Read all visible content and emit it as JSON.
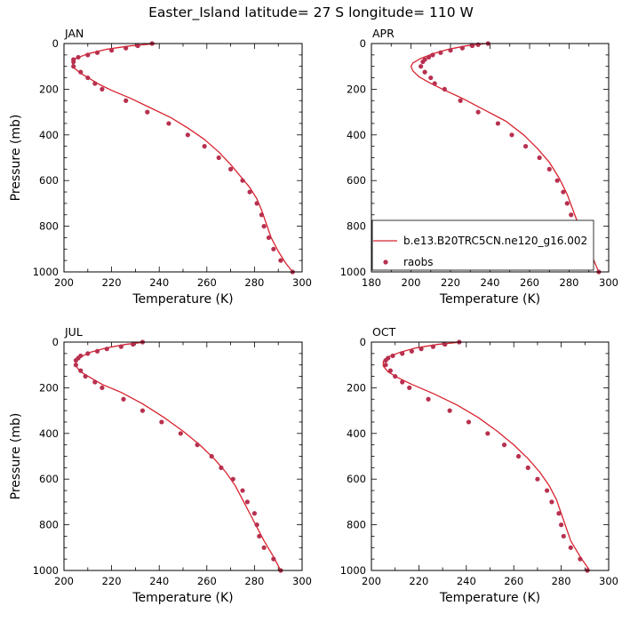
{
  "title": "Easter_Island  latitude= 27 S longitude= 110 W",
  "colors": {
    "model_line": "#d8232f",
    "obs_marker": "#b8304f",
    "axes": "#000000"
  },
  "legend": {
    "model_label": "b.e13.B20TRC5CN.ne120_g16.002",
    "obs_label": "raobs"
  },
  "chart_data": [
    {
      "type": "line",
      "panel": "JAN",
      "xlabel": "Temperature (K)",
      "ylabel": "Pressure (mb)",
      "xlim": [
        200,
        300
      ],
      "ylim": [
        1000,
        0
      ],
      "xticks": [
        200,
        220,
        240,
        260,
        280,
        300
      ],
      "yticks": [
        0,
        200,
        400,
        600,
        800,
        1000
      ],
      "series": [
        {
          "name": "b.e13.B20TRC5CN.ne120_g16.002",
          "style": "line",
          "values": [
            [
              239,
              0
            ],
            [
              228,
              10
            ],
            [
              218,
              25
            ],
            [
              210,
              45
            ],
            [
              205,
              65
            ],
            [
              203.5,
              85
            ],
            [
              204,
              105
            ],
            [
              207,
              130
            ],
            [
              211,
              155
            ],
            [
              215,
              180
            ],
            [
              220,
              205
            ],
            [
              228,
              240
            ],
            [
              237,
              285
            ],
            [
              245,
              325
            ],
            [
              252,
              370
            ],
            [
              259,
              420
            ],
            [
              265,
              475
            ],
            [
              270,
              530
            ],
            [
              274,
              580
            ],
            [
              278,
              630
            ],
            [
              281,
              680
            ],
            [
              283,
              730
            ],
            [
              285,
              790
            ],
            [
              287,
              850
            ],
            [
              290,
              910
            ],
            [
              293,
              960
            ],
            [
              296,
              1000
            ]
          ]
        },
        {
          "name": "raobs",
          "style": "markers",
          "values": [
            [
              237,
              0
            ],
            [
              231,
              10
            ],
            [
              226,
              20
            ],
            [
              220,
              30
            ],
            [
              214,
              40
            ],
            [
              210,
              50
            ],
            [
              206,
              60
            ],
            [
              204,
              70
            ],
            [
              204,
              80
            ],
            [
              204,
              100
            ],
            [
              207,
              125
            ],
            [
              210,
              150
            ],
            [
              213,
              175
            ],
            [
              216,
              200
            ],
            [
              226,
              250
            ],
            [
              235,
              300
            ],
            [
              244,
              350
            ],
            [
              252,
              400
            ],
            [
              259,
              450
            ],
            [
              265,
              500
            ],
            [
              270,
              550
            ],
            [
              275,
              600
            ],
            [
              278,
              650
            ],
            [
              281,
              700
            ],
            [
              283,
              750
            ],
            [
              284,
              800
            ],
            [
              286,
              850
            ],
            [
              288,
              900
            ],
            [
              291,
              950
            ],
            [
              296,
              1000
            ]
          ]
        }
      ]
    },
    {
      "type": "line",
      "panel": "APR",
      "xlabel": "Temperature (K)",
      "ylabel": "",
      "xlim": [
        180,
        300
      ],
      "ylim": [
        1000,
        0
      ],
      "xticks": [
        180,
        200,
        220,
        240,
        260,
        280,
        300
      ],
      "yticks": [
        0,
        200,
        400,
        600,
        800,
        1000
      ],
      "series": [
        {
          "name": "b.e13.B20TRC5CN.ne120_g16.002",
          "style": "line",
          "values": [
            [
              238,
              0
            ],
            [
              228,
              10
            ],
            [
              219,
              25
            ],
            [
              211,
              45
            ],
            [
              205,
              65
            ],
            [
              201,
              85
            ],
            [
              200,
              100
            ],
            [
              201,
              120
            ],
            [
              204,
              145
            ],
            [
              209,
              170
            ],
            [
              216,
              200
            ],
            [
              226,
              240
            ],
            [
              237,
              290
            ],
            [
              248,
              340
            ],
            [
              257,
              400
            ],
            [
              264,
              460
            ],
            [
              270,
              520
            ],
            [
              275,
              590
            ],
            [
              279,
              660
            ],
            [
              282,
              730
            ],
            [
              285,
              800
            ],
            [
              288,
              870
            ],
            [
              292,
              940
            ],
            [
              295,
              1000
            ]
          ]
        },
        {
          "name": "raobs",
          "style": "markers",
          "values": [
            [
              239,
              0
            ],
            [
              234,
              5
            ],
            [
              231,
              10
            ],
            [
              226,
              20
            ],
            [
              220,
              30
            ],
            [
              215,
              40
            ],
            [
              211,
              50
            ],
            [
              209,
              60
            ],
            [
              207,
              70
            ],
            [
              206,
              80
            ],
            [
              205,
              100
            ],
            [
              207,
              125
            ],
            [
              210,
              150
            ],
            [
              212,
              175
            ],
            [
              217,
              200
            ],
            [
              225,
              250
            ],
            [
              234,
              300
            ],
            [
              244,
              350
            ],
            [
              251,
              400
            ],
            [
              258,
              450
            ],
            [
              265,
              500
            ],
            [
              270,
              550
            ],
            [
              274,
              600
            ],
            [
              277,
              650
            ],
            [
              279,
              700
            ],
            [
              281,
              750
            ],
            [
              283,
              800
            ],
            [
              285,
              850
            ],
            [
              287,
              900
            ],
            [
              291,
              950
            ],
            [
              295,
              1000
            ]
          ]
        }
      ]
    },
    {
      "type": "line",
      "panel": "JUL",
      "xlabel": "Temperature (K)",
      "ylabel": "Pressure (mb)",
      "xlim": [
        200,
        300
      ],
      "ylim": [
        1000,
        0
      ],
      "xticks": [
        200,
        220,
        240,
        260,
        280,
        300
      ],
      "yticks": [
        0,
        200,
        400,
        600,
        800,
        1000
      ],
      "series": [
        {
          "name": "b.e13.B20TRC5CN.ne120_g16.002",
          "style": "line",
          "values": [
            [
              234,
              0
            ],
            [
              226,
              10
            ],
            [
              218,
              25
            ],
            [
              211,
              45
            ],
            [
              207,
              65
            ],
            [
              205,
              85
            ],
            [
              205,
              105
            ],
            [
              207,
              130
            ],
            [
              211,
              155
            ],
            [
              216,
              185
            ],
            [
              224,
              220
            ],
            [
              233,
              270
            ],
            [
              242,
              330
            ],
            [
              250,
              390
            ],
            [
              257,
              450
            ],
            [
              263,
              510
            ],
            [
              268,
              570
            ],
            [
              272,
              630
            ],
            [
              275,
              690
            ],
            [
              278,
              750
            ],
            [
              281,
              810
            ],
            [
              284,
              870
            ],
            [
              288,
              940
            ],
            [
              291,
              1000
            ]
          ]
        },
        {
          "name": "raobs",
          "style": "markers",
          "values": [
            [
              233,
              0
            ],
            [
              229,
              10
            ],
            [
              224,
              20
            ],
            [
              218,
              30
            ],
            [
              214,
              40
            ],
            [
              210,
              50
            ],
            [
              207,
              60
            ],
            [
              206,
              70
            ],
            [
              205,
              80
            ],
            [
              205,
              100
            ],
            [
              207,
              125
            ],
            [
              209,
              150
            ],
            [
              213,
              175
            ],
            [
              216,
              200
            ],
            [
              225,
              250
            ],
            [
              233,
              300
            ],
            [
              241,
              350
            ],
            [
              249,
              400
            ],
            [
              256,
              450
            ],
            [
              262,
              500
            ],
            [
              266,
              550
            ],
            [
              271,
              600
            ],
            [
              275,
              650
            ],
            [
              277,
              700
            ],
            [
              280,
              750
            ],
            [
              281,
              800
            ],
            [
              282,
              850
            ],
            [
              284,
              900
            ],
            [
              288,
              950
            ],
            [
              291,
              1000
            ]
          ]
        }
      ]
    },
    {
      "type": "line",
      "panel": "OCT",
      "xlabel": "Temperature (K)",
      "ylabel": "",
      "xlim": [
        200,
        300
      ],
      "ylim": [
        1000,
        0
      ],
      "xticks": [
        200,
        220,
        240,
        260,
        280,
        300
      ],
      "yticks": [
        0,
        200,
        400,
        600,
        800,
        1000
      ],
      "series": [
        {
          "name": "b.e13.B20TRC5CN.ne120_g16.002",
          "style": "line",
          "values": [
            [
              238,
              0
            ],
            [
              228,
              10
            ],
            [
              219,
              25
            ],
            [
              212,
              45
            ],
            [
              207,
              65
            ],
            [
              205,
              85
            ],
            [
              205,
              105
            ],
            [
              207,
              130
            ],
            [
              211,
              155
            ],
            [
              217,
              185
            ],
            [
              226,
              225
            ],
            [
              236,
              275
            ],
            [
              245,
              330
            ],
            [
              253,
              390
            ],
            [
              260,
              450
            ],
            [
              266,
              510
            ],
            [
              271,
              570
            ],
            [
              275,
              630
            ],
            [
              278,
              690
            ],
            [
              280,
              750
            ],
            [
              282,
              810
            ],
            [
              284,
              870
            ],
            [
              288,
              940
            ],
            [
              292,
              1000
            ]
          ]
        },
        {
          "name": "raobs",
          "style": "markers",
          "values": [
            [
              237,
              0
            ],
            [
              231,
              10
            ],
            [
              226,
              20
            ],
            [
              221,
              30
            ],
            [
              217,
              40
            ],
            [
              213,
              50
            ],
            [
              209,
              60
            ],
            [
              207,
              70
            ],
            [
              206,
              80
            ],
            [
              206,
              100
            ],
            [
              208,
              125
            ],
            [
              210,
              150
            ],
            [
              213,
              175
            ],
            [
              216,
              200
            ],
            [
              224,
              250
            ],
            [
              233,
              300
            ],
            [
              241,
              350
            ],
            [
              249,
              400
            ],
            [
              256,
              450
            ],
            [
              262,
              500
            ],
            [
              266,
              550
            ],
            [
              270,
              600
            ],
            [
              274,
              650
            ],
            [
              276,
              700
            ],
            [
              279,
              750
            ],
            [
              280,
              800
            ],
            [
              281,
              850
            ],
            [
              284,
              900
            ],
            [
              288,
              950
            ],
            [
              291,
              1000
            ]
          ]
        }
      ]
    }
  ]
}
